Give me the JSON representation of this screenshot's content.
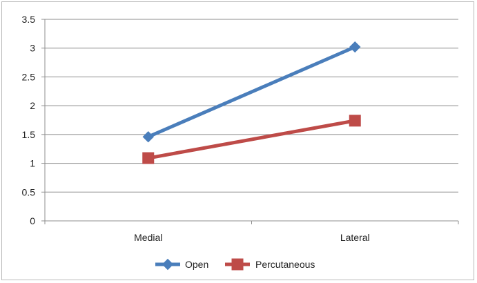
{
  "chart_data": {
    "type": "line",
    "categories": [
      "Medial",
      "Lateral"
    ],
    "series": [
      {
        "name": "Open",
        "values": [
          1.46,
          3.02
        ],
        "color": "#4a7ebb",
        "marker": "diamond"
      },
      {
        "name": "Percutaneous",
        "values": [
          1.09,
          1.74
        ],
        "color": "#be4b48",
        "marker": "square"
      }
    ],
    "ylim": [
      0,
      3.5
    ],
    "yticks": [
      "0",
      "0.5",
      "1",
      "1.5",
      "2",
      "2.5",
      "3",
      "3.5"
    ],
    "grid": true,
    "legend_position": "bottom"
  }
}
